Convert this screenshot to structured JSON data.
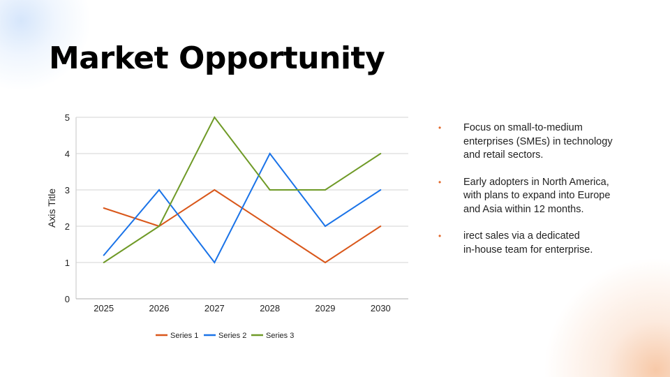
{
  "title": "Market Opportunity",
  "bullets": [
    {
      "lines": [
        "Focus on small-to-medium",
        "enterprises (SMEs) in technology",
        "and retail sectors."
      ]
    },
    {
      "lines": [
        "Early adopters in North America,",
        "with plans to expand into Europe",
        "and Asia within 12 months."
      ]
    },
    {
      "lines": [
        "irect sales via a dedicated",
        "in-house team for enterprise."
      ]
    }
  ],
  "bullet_color": "#e2692c",
  "chart_data": {
    "type": "line",
    "categories": [
      "2025",
      "2026",
      "2027",
      "2028",
      "2029",
      "2030"
    ],
    "series": [
      {
        "name": "Series 1",
        "color": "#d9571a",
        "values": [
          2.5,
          2,
          3,
          2,
          1,
          2
        ]
      },
      {
        "name": "Series 2",
        "color": "#1a73e8",
        "values": [
          1.2,
          3,
          1,
          4,
          2,
          3
        ]
      },
      {
        "name": "Series 3",
        "color": "#6f9a27",
        "values": [
          1,
          2,
          5,
          3,
          3,
          4
        ]
      }
    ],
    "ylabel": "Axis Title",
    "ylim": [
      0,
      5
    ],
    "yticks": [
      "0",
      "1",
      "2",
      "3",
      "4",
      "5"
    ],
    "grid": true,
    "legend": "bottom"
  }
}
